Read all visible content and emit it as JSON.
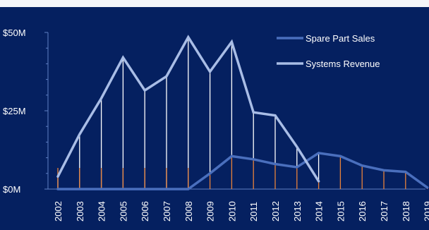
{
  "chart_data": {
    "type": "line",
    "title": "",
    "xlabel": "",
    "ylabel": "",
    "x": [
      "2002",
      "2003",
      "2004",
      "2005",
      "2006",
      "2007",
      "2008",
      "2009",
      "2010",
      "2011",
      "2012",
      "2013",
      "2014",
      "2015",
      "2016",
      "2017",
      "2018",
      "2019"
    ],
    "ylim": [
      0,
      50
    ],
    "yticks": [
      0,
      25,
      50
    ],
    "ytick_labels": [
      "$0M",
      "$25M",
      "$50M"
    ],
    "legend_position": "top-right",
    "grid": false,
    "series": [
      {
        "name": "Spare Part Sales",
        "color": "#4a6fbd",
        "values": [
          0,
          0,
          0,
          0,
          0,
          0,
          0,
          5,
          10.5,
          9.5,
          8,
          7,
          11.5,
          10.5,
          7.5,
          6,
          5.5,
          0.5
        ]
      },
      {
        "name": "Systems Revenue",
        "color": "#a9bde6",
        "values": [
          4,
          17.5,
          29,
          42,
          31.5,
          36,
          48.5,
          37.5,
          47,
          24.5,
          23.5,
          13.5,
          2.5,
          null,
          null,
          null,
          null,
          null
        ]
      }
    ],
    "drop_lines": {
      "upper_color": "#ffffff",
      "lower_color": "#e8823a"
    }
  }
}
